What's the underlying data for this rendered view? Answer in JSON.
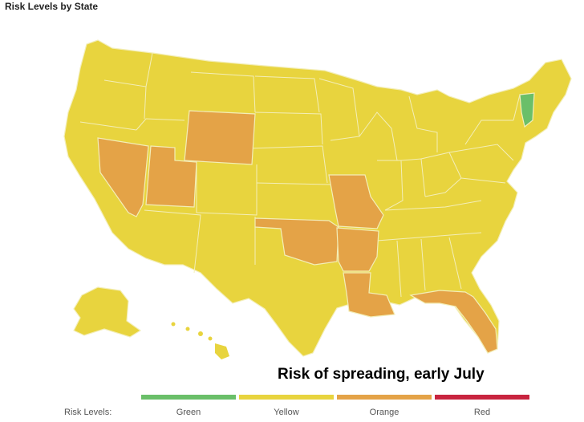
{
  "title": "Risk Levels by State",
  "caption": "Risk of spreading, early July",
  "legend": {
    "label": "Risk Levels:",
    "items": [
      {
        "name": "Green",
        "color": "#6abf69"
      },
      {
        "name": "Yellow",
        "color": "#e8d43e"
      },
      {
        "name": "Orange",
        "color": "#e4a347"
      },
      {
        "name": "Red",
        "color": "#c8243f"
      }
    ]
  },
  "colors": {
    "yellow": "#e8d43e",
    "orange": "#e4a347",
    "green": "#6abf69",
    "border": "#f3eeb8"
  },
  "states": {
    "green": [
      "Vermont"
    ],
    "orange": [
      "Nevada",
      "Utah",
      "Wyoming",
      "Missouri",
      "Oklahoma",
      "Arkansas",
      "Louisiana",
      "Florida"
    ],
    "yellow": [
      "All other states"
    ]
  }
}
